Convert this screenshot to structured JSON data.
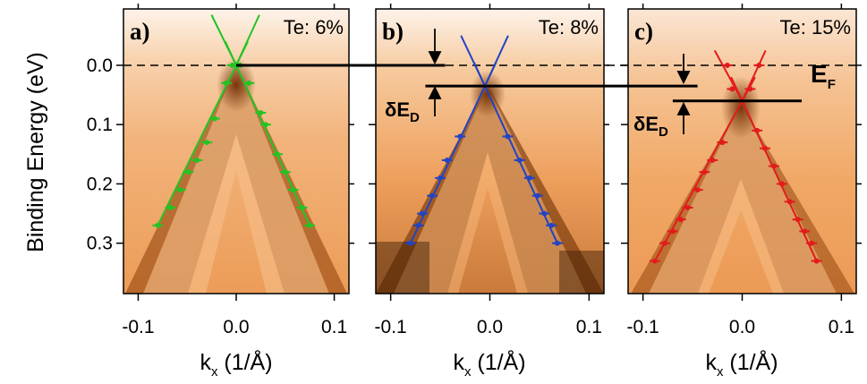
{
  "chart_data": {
    "type": "scatter",
    "y_axis": {
      "title": "Binding Energy (eV)",
      "range": [
        0.385,
        -0.095
      ],
      "ticks": [
        0.0,
        0.1,
        0.2,
        0.3
      ],
      "tick_labels": [
        "0.0",
        "0.1",
        "0.2",
        "0.3"
      ]
    },
    "x_axis": {
      "title_main": "k",
      "title_sub": "x",
      "title_unit": " (1/Å)",
      "range": [
        -0.115,
        0.115
      ],
      "ticks": [
        -0.1,
        0.0,
        0.1
      ],
      "tick_labels": [
        "-0.1",
        "0.0",
        "0.1"
      ]
    },
    "fermi_label": {
      "main": "E",
      "sub": "F"
    },
    "delta_label": {
      "prefix": "δE",
      "sub": "D"
    },
    "panels": [
      {
        "letter": "a)",
        "doping": "Te: 6%",
        "color": "#22c422",
        "dirac_point": {
          "k": 0.0,
          "E": 0.0
        },
        "left_branch": [
          {
            "k": -0.004,
            "E": 0.0
          },
          {
            "k": -0.01,
            "E": 0.03
          },
          {
            "k": -0.022,
            "E": 0.09
          },
          {
            "k": -0.03,
            "E": 0.13
          },
          {
            "k": -0.04,
            "E": 0.16
          },
          {
            "k": -0.049,
            "E": 0.18
          },
          {
            "k": -0.057,
            "E": 0.21
          },
          {
            "k": -0.067,
            "E": 0.24
          },
          {
            "k": -0.08,
            "E": 0.27
          }
        ],
        "right_branch": [
          {
            "k": 0.004,
            "E": 0.0
          },
          {
            "k": 0.013,
            "E": 0.03
          },
          {
            "k": 0.025,
            "E": 0.08
          },
          {
            "k": 0.03,
            "E": 0.1
          },
          {
            "k": 0.042,
            "E": 0.15
          },
          {
            "k": 0.05,
            "E": 0.18
          },
          {
            "k": 0.058,
            "E": 0.21
          },
          {
            "k": 0.067,
            "E": 0.24
          },
          {
            "k": 0.075,
            "E": 0.27
          }
        ]
      },
      {
        "letter": "b)",
        "doping": "Te: 8%",
        "color": "#2243c4",
        "dirac_point": {
          "k": -0.005,
          "E": 0.035
        },
        "left_branch": [
          {
            "k": -0.03,
            "E": 0.12
          },
          {
            "k": -0.043,
            "E": 0.16
          },
          {
            "k": -0.05,
            "E": 0.19
          },
          {
            "k": -0.058,
            "E": 0.22
          },
          {
            "k": -0.068,
            "E": 0.25
          },
          {
            "k": -0.072,
            "E": 0.27
          },
          {
            "k": -0.08,
            "E": 0.3
          }
        ],
        "right_branch": [
          {
            "k": 0.018,
            "E": 0.12
          },
          {
            "k": 0.03,
            "E": 0.16
          },
          {
            "k": 0.04,
            "E": 0.19
          },
          {
            "k": 0.048,
            "E": 0.22
          },
          {
            "k": 0.055,
            "E": 0.25
          },
          {
            "k": 0.062,
            "E": 0.27
          },
          {
            "k": 0.068,
            "E": 0.3
          }
        ]
      },
      {
        "letter": "c)",
        "doping": "Te: 15%",
        "color": "#e21b1b",
        "dirac_point": {
          "k": 0.0,
          "E": 0.06
        },
        "left_branch": [
          {
            "k": -0.015,
            "E": 0.0
          },
          {
            "k": -0.01,
            "E": 0.04
          },
          {
            "k": -0.02,
            "E": 0.13
          },
          {
            "k": -0.03,
            "E": 0.16
          },
          {
            "k": -0.038,
            "E": 0.18
          },
          {
            "k": -0.045,
            "E": 0.21
          },
          {
            "k": -0.055,
            "E": 0.24
          },
          {
            "k": -0.062,
            "E": 0.26
          },
          {
            "k": -0.07,
            "E": 0.28
          },
          {
            "k": -0.078,
            "E": 0.3
          },
          {
            "k": -0.088,
            "E": 0.33
          }
        ],
        "right_branch": [
          {
            "k": 0.017,
            "E": 0.0
          },
          {
            "k": 0.008,
            "E": 0.04
          },
          {
            "k": 0.015,
            "E": 0.11
          },
          {
            "k": 0.023,
            "E": 0.14
          },
          {
            "k": 0.032,
            "E": 0.17
          },
          {
            "k": 0.04,
            "E": 0.2
          },
          {
            "k": 0.048,
            "E": 0.23
          },
          {
            "k": 0.056,
            "E": 0.26
          },
          {
            "k": 0.063,
            "E": 0.28
          },
          {
            "k": 0.07,
            "E": 0.3
          },
          {
            "k": 0.075,
            "E": 0.33
          }
        ]
      }
    ],
    "reference_lines": [
      {
        "name": "dirac-level-a",
        "E": 0.0,
        "from_panel": 0,
        "k_from": 0.0,
        "to_panel": 1,
        "k_to": -0.045
      },
      {
        "name": "dirac-level-b",
        "E": 0.035,
        "from_panel": 1,
        "k_from": -0.065,
        "to_panel": 2,
        "k_to": -0.045
      },
      {
        "name": "dirac-level-c",
        "E": 0.06,
        "from_panel": 2,
        "k_from": -0.07,
        "to_panel": 2,
        "k_to": 0.06
      }
    ]
  }
}
